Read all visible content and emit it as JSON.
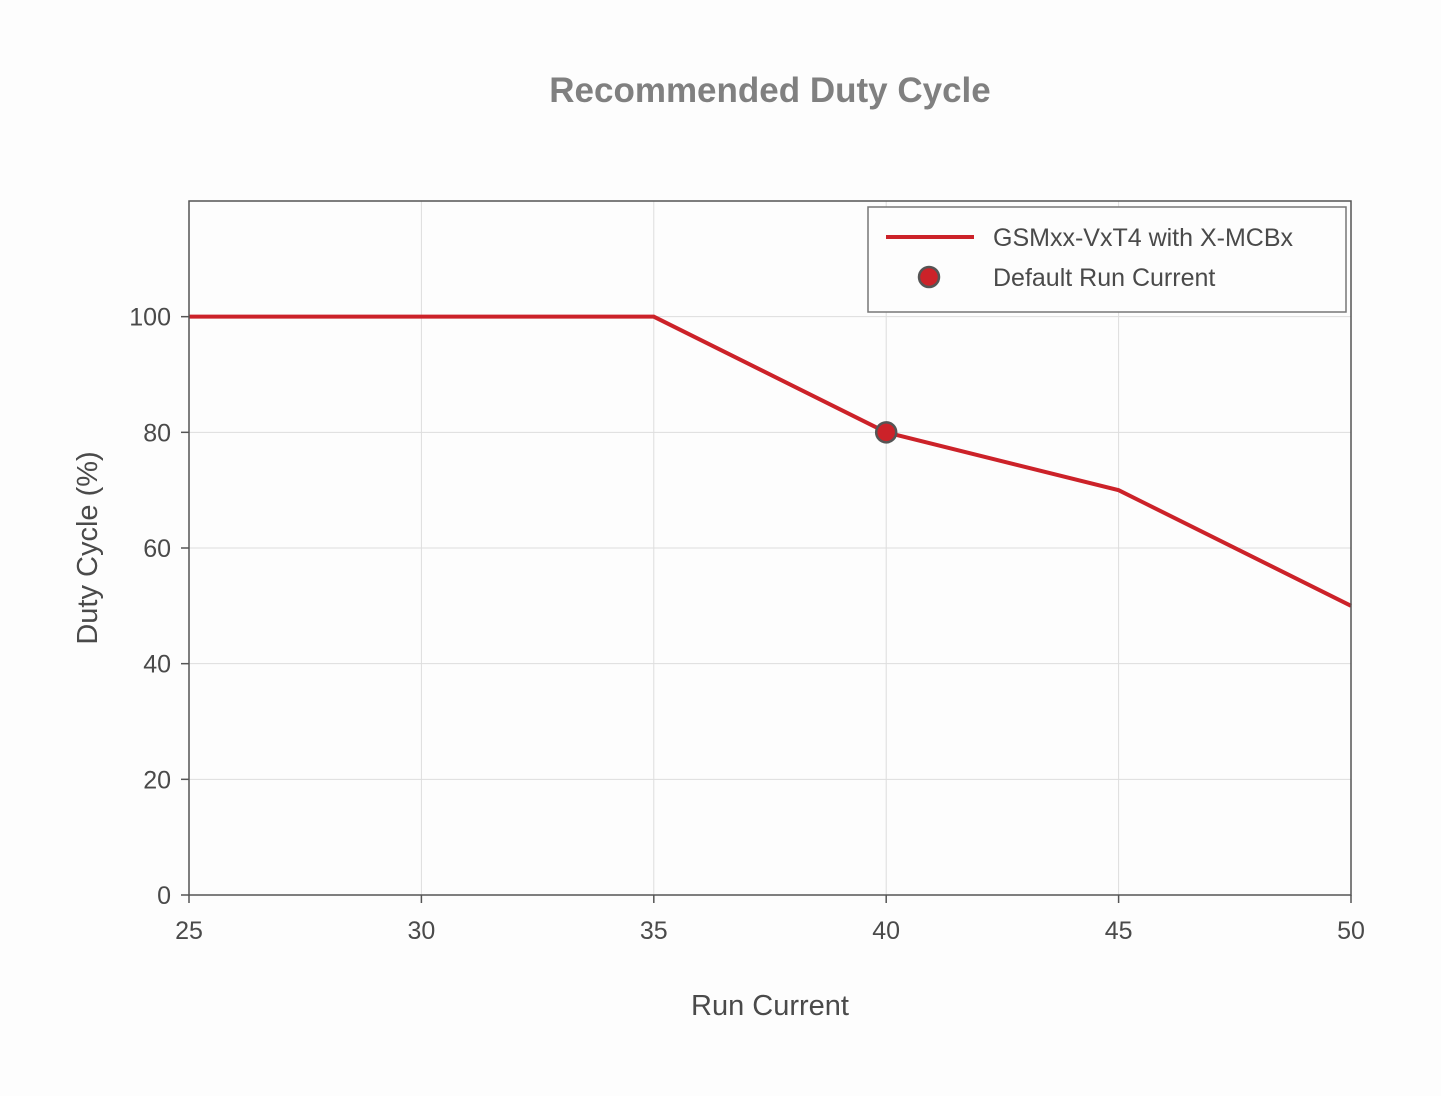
{
  "chart_data": {
    "type": "line",
    "title": "Recommended Duty Cycle",
    "xlabel": "Run Current",
    "ylabel": "Duty Cycle (%)",
    "xlim": [
      25,
      50
    ],
    "ylim": [
      0,
      120
    ],
    "x_ticks": [
      25,
      30,
      35,
      40,
      45,
      50
    ],
    "y_ticks": [
      0,
      20,
      40,
      60,
      80,
      100
    ],
    "grid": true,
    "legend_position": "top-right",
    "series": [
      {
        "name": "GSMxx-VxT4 with X-MCBx",
        "kind": "line",
        "color": "#cc2229",
        "x": [
          25,
          35,
          40,
          45,
          50
        ],
        "y": [
          100,
          100,
          80,
          70,
          50
        ]
      },
      {
        "name": "Default Run Current",
        "kind": "marker",
        "color": "#cc2229",
        "edge_color": "#555555",
        "x": [
          40
        ],
        "y": [
          80
        ]
      }
    ]
  }
}
